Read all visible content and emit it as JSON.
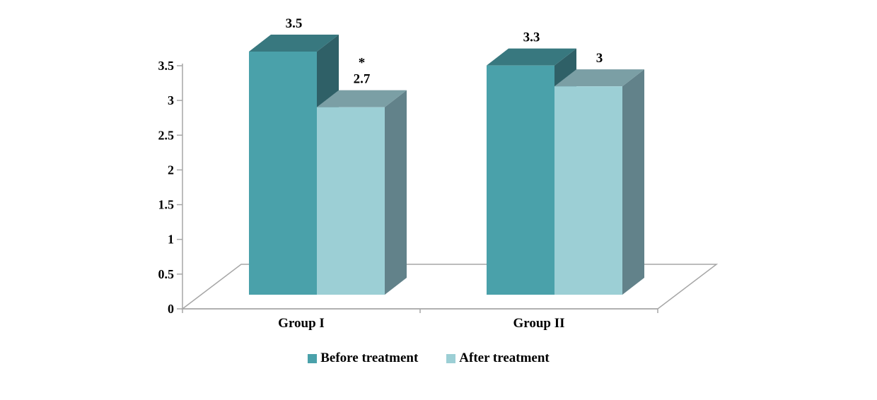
{
  "chart_data": {
    "type": "bar",
    "style": "3d-clustered-column",
    "title": "",
    "categories": [
      "Group I",
      "Group II"
    ],
    "series": [
      {
        "name": "Before treatment",
        "values": [
          3.5,
          3.3
        ],
        "data_labels": [
          "3.5",
          "3.3"
        ],
        "colors": {
          "front": "#4aa1aa",
          "top": "#38787f",
          "side": "#2f6067"
        }
      },
      {
        "name": "After treatment",
        "values": [
          2.7,
          3.0
        ],
        "data_labels": [
          "2.7",
          "3"
        ],
        "colors": {
          "front": "#9ccfd5",
          "top": "#7b9fa5",
          "side": "#62828a"
        }
      }
    ],
    "annotations": [
      {
        "text": "*",
        "category_index": 0,
        "series_index": 1,
        "meaning": "significance marker above After treatment value in Group I"
      }
    ],
    "y_axis": {
      "min": 0,
      "max": 3.5,
      "step": 0.5,
      "tick_labels": [
        "0",
        "0.5",
        "1",
        "1.5",
        "2",
        "2.5",
        "3",
        "3.5"
      ]
    },
    "x_axis": {
      "tick_labels": [
        "Group I",
        "Group II"
      ]
    },
    "legend": {
      "position": "bottom",
      "entries": [
        "Before treatment",
        "After treatment"
      ]
    },
    "axis_color": "#a6a6a6",
    "text_color": "#000000",
    "background": "#ffffff",
    "grid": false
  }
}
